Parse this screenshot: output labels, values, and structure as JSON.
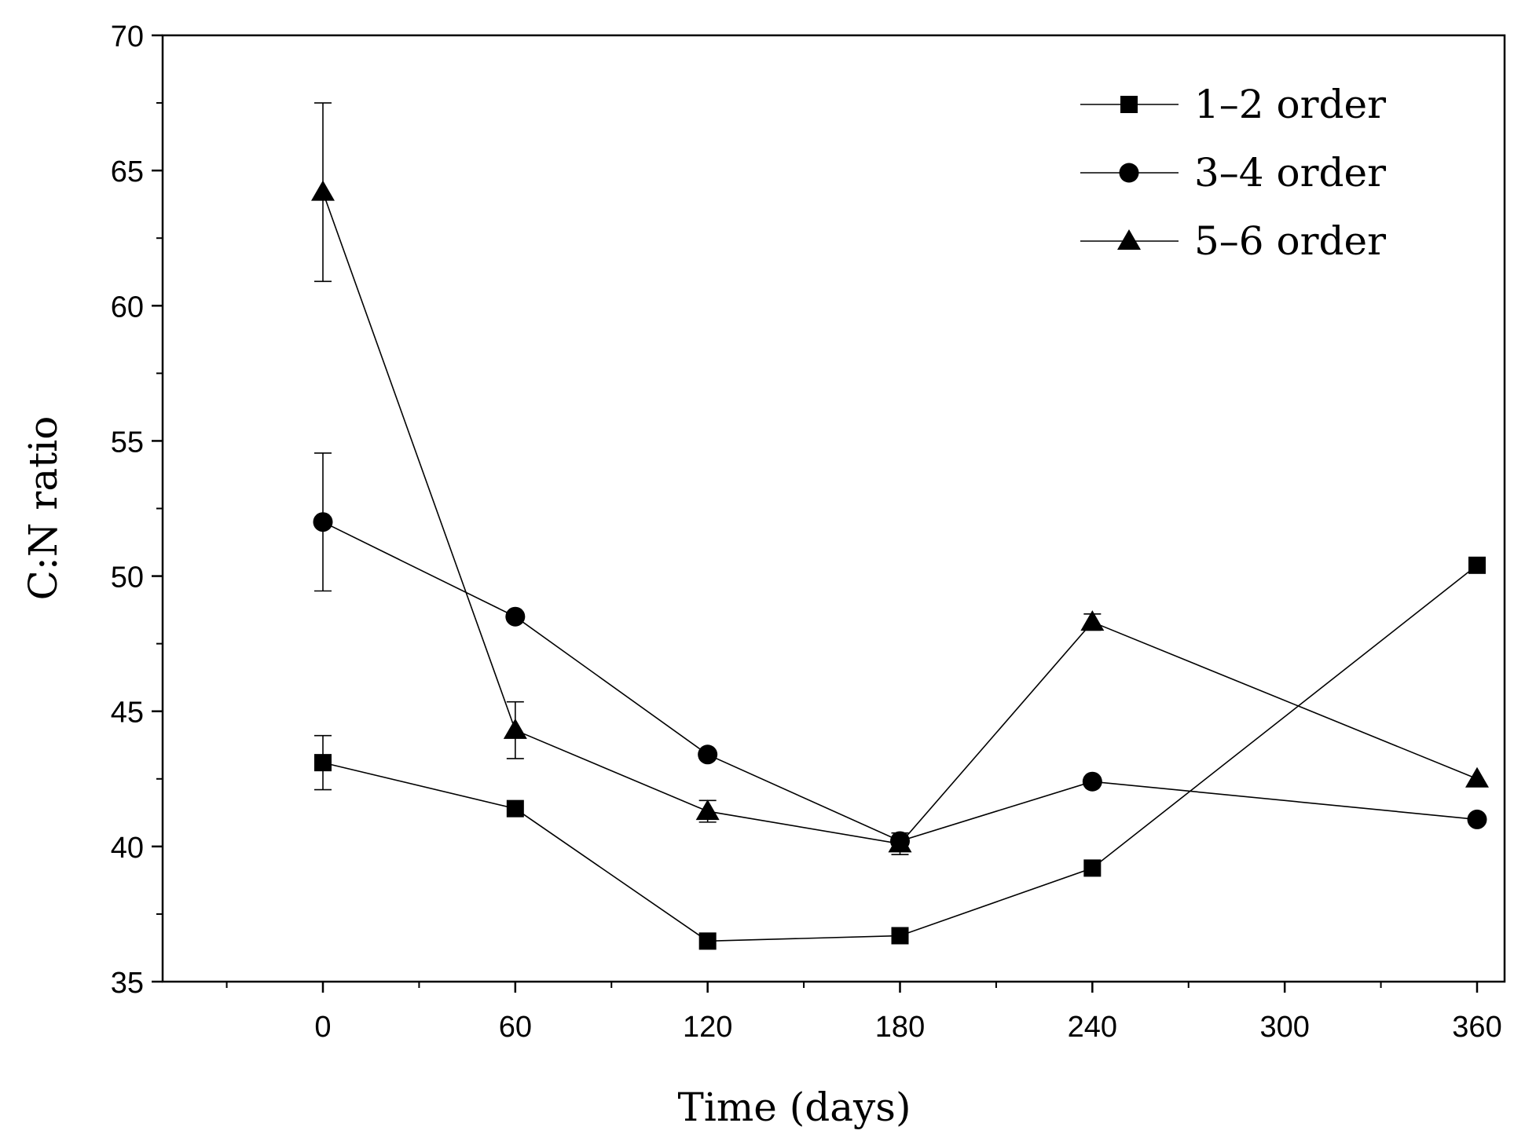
{
  "chart_data": {
    "type": "line",
    "title": "",
    "xlabel": "Time (days)",
    "ylabel": "C:N ratio",
    "xlim": [
      -50,
      370
    ],
    "ylim": [
      35,
      70
    ],
    "xticks": [
      0,
      60,
      120,
      180,
      240,
      300,
      360
    ],
    "xtick_labels": [
      "0",
      "60",
      "120",
      "180",
      "240",
      "300",
      "360"
    ],
    "yticks": [
      35,
      40,
      45,
      50,
      55,
      60,
      65,
      70
    ],
    "ytick_labels": [
      "35",
      "40",
      "45",
      "50",
      "55",
      "60",
      "65",
      "70"
    ],
    "grid": false,
    "legend_position": "top-right",
    "series": [
      {
        "name": "1–2 order",
        "marker": "square",
        "x": [
          0,
          60,
          120,
          180,
          240,
          360
        ],
        "values": [
          43.1,
          41.4,
          36.5,
          36.7,
          39.2,
          50.4
        ],
        "error": [
          1.0,
          0,
          0,
          0,
          0,
          0
        ]
      },
      {
        "name": "3–4 order",
        "marker": "circle",
        "x": [
          0,
          60,
          120,
          180,
          240,
          360
        ],
        "values": [
          52.0,
          48.5,
          43.4,
          40.2,
          42.4,
          41.0
        ],
        "error": [
          2.55,
          0,
          0,
          0,
          0,
          0
        ]
      },
      {
        "name": "5–6 order",
        "marker": "triangle",
        "x": [
          0,
          60,
          120,
          180,
          240,
          360
        ],
        "values": [
          64.2,
          44.3,
          41.3,
          40.1,
          48.3,
          42.5
        ],
        "error": [
          3.3,
          1.05,
          0.4,
          0.4,
          0.3,
          0
        ]
      }
    ]
  }
}
